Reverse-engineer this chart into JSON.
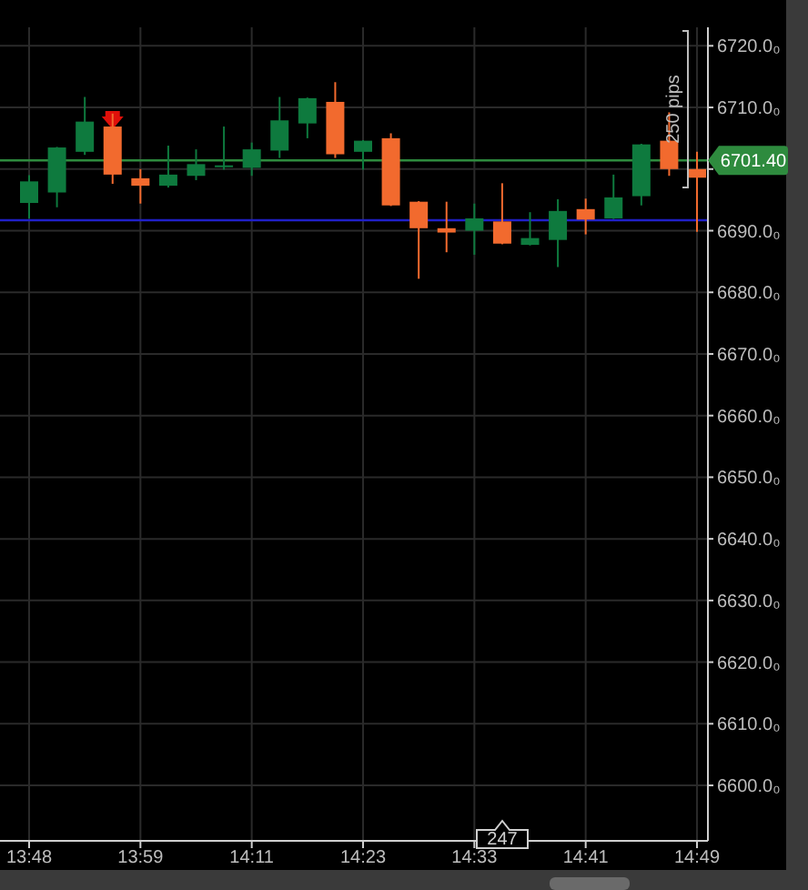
{
  "chart_data": {
    "type": "candlestick",
    "categories": [
      "13:48",
      null,
      null,
      null,
      "13:59",
      null,
      null,
      null,
      "14:11",
      null,
      null,
      null,
      "14:23",
      null,
      null,
      null,
      "14:33",
      null,
      null,
      null,
      "14:41",
      null,
      null,
      null,
      "14:49"
    ],
    "ohlc": [
      [
        6694.5,
        6699,
        6692,
        6698
      ],
      [
        6696.2,
        6703.6,
        6693.8,
        6703.5
      ],
      [
        6702.8,
        6711.7,
        6702.3,
        6707.7
      ],
      [
        6706.9,
        6709,
        6697.6,
        6699.1
      ],
      [
        6698.5,
        6700,
        6694.4,
        6697.3
      ],
      [
        6697.3,
        6703.8,
        6697,
        6699.1
      ],
      [
        6698.9,
        6703.2,
        6698.2,
        6700.8
      ],
      [
        6700.4,
        6706.9,
        6699.9,
        6700.6
      ],
      [
        6700.2,
        6704.3,
        6698.9,
        6703.2
      ],
      [
        6703,
        6711.7,
        6701.8,
        6707.9
      ],
      [
        6707.4,
        6711.6,
        6705,
        6711.5
      ],
      [
        6710.9,
        6714.1,
        6701.8,
        6702.4
      ],
      [
        6702.8,
        6704.7,
        6699.9,
        6704.6
      ],
      [
        6705,
        6705.8,
        6694,
        6694.1
      ],
      [
        6694.7,
        6694.8,
        6682.2,
        6690.4
      ],
      [
        6690.4,
        6694.7,
        6686.5,
        6689.7
      ],
      [
        6690,
        6694.4,
        6686.1,
        6692
      ],
      [
        6691.5,
        6697.7,
        6687.8,
        6687.9
      ],
      [
        6687.7,
        6693,
        6687.6,
        6688.8
      ],
      [
        6688.5,
        6695.1,
        6684.1,
        6693.2
      ],
      [
        6693.5,
        6695.2,
        6689.4,
        6691.8
      ],
      [
        6692,
        6699.1,
        6691.9,
        6695.4
      ],
      [
        6695.6,
        6704.1,
        6694.1,
        6704
      ],
      [
        6704.6,
        6709.2,
        6698.9,
        6700
      ],
      [
        6700,
        6702.8,
        6689.8,
        6698.6
      ]
    ],
    "colors": [
      "#0e7a3e",
      "#0e7a3e",
      "#0e7a3e",
      "#f26a2e",
      "#f26a2e",
      "#0e7a3e",
      "#0e7a3e",
      "#0e7a3e",
      "#0e7a3e",
      "#0e7a3e",
      "#0e7a3e",
      "#f26a2e",
      "#0e7a3e",
      "#f26a2e",
      "#f26a2e",
      "#f26a2e",
      "#0e7a3e",
      "#f26a2e",
      "#0e7a3e",
      "#0e7a3e",
      "#f26a2e",
      "#0e7a3e",
      "#0e7a3e",
      "#f26a2e",
      "#f26a2e"
    ],
    "ylim": [
      6591,
      6723
    ],
    "yticks": [
      {
        "value": 6600,
        "label": "6600.0₀"
      },
      {
        "value": 6610,
        "label": "6610.0₀"
      },
      {
        "value": 6620,
        "label": "6620.0₀"
      },
      {
        "value": 6630,
        "label": "6630.0₀"
      },
      {
        "value": 6640,
        "label": "6640.0₀"
      },
      {
        "value": 6650,
        "label": "6650.0₀"
      },
      {
        "value": 6660,
        "label": "6660.0₀"
      },
      {
        "value": 6670,
        "label": "6670.0₀"
      },
      {
        "value": 6680,
        "label": "6680.0₀"
      },
      {
        "value": 6690,
        "label": "6690.0₀"
      },
      {
        "value": 6700,
        "label": null
      },
      {
        "value": 6710,
        "label": "6710.0₀"
      },
      {
        "value": 6720,
        "label": "6720.0₀"
      }
    ],
    "grid": true,
    "ref_lines": [
      {
        "axis": "y",
        "value": 6701.4,
        "label": "6701.40",
        "color": "#2e8b3e"
      },
      {
        "axis": "y",
        "value": 6691.7,
        "label": null,
        "color": "#2020c8"
      }
    ],
    "annotations": [
      "250 pips",
      "247"
    ]
  }
}
